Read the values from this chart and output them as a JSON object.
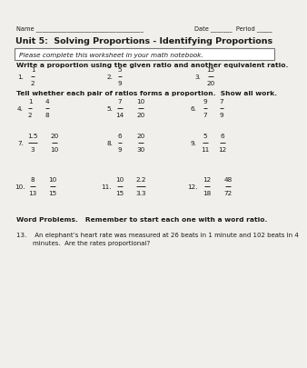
{
  "title": "Unit 5:  Solving Proportions - Identifying Proportions",
  "name_line_left": "Name ___________________________________",
  "name_line_right": "Date _______  Period _____",
  "box_text": "Please complete this worksheet in your math notebook.",
  "section1_header": "Write a proportion using the given ratio and another equivalent ratio.",
  "section2_header": "Tell whether each pair of ratios forms a proportion.  Show all work.",
  "word_problems_header": "Word Problems.   Remember to start each one with a word ratio.",
  "word_problem_13a": "13.    An elephant’s heart rate was measured at 26 beats in 1 minute and 102 beats in 4",
  "word_problem_13b": "        minutes.  Are the rates proportional?",
  "bg_color": "#f0efeb",
  "text_color": "#1a1a1a",
  "box_edge_color": "#777777"
}
